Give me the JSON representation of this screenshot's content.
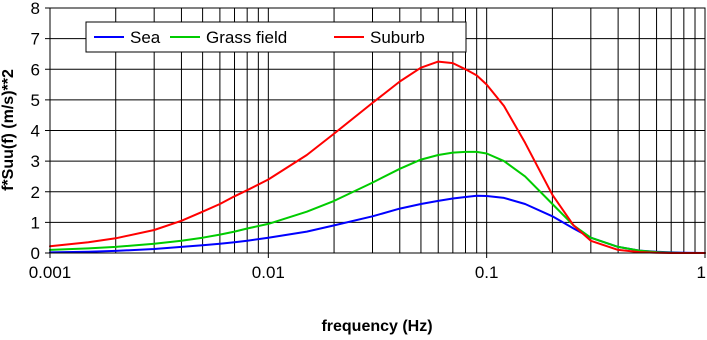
{
  "chart_data": {
    "type": "line",
    "title": "",
    "xlabel": "frequency (Hz)",
    "ylabel": "f*Suu(f)  (m/s)**2",
    "x_scale": "log",
    "xlim": [
      0.001,
      1
    ],
    "ylim": [
      0,
      8
    ],
    "x_ticks": [
      0.001,
      0.01,
      0.1,
      1
    ],
    "x_tick_labels": [
      "0.001",
      "0.01",
      "0.1",
      "1"
    ],
    "y_ticks": [
      0,
      1,
      2,
      3,
      4,
      5,
      6,
      7,
      8
    ],
    "y_tick_labels": [
      "0",
      "1",
      "2",
      "3",
      "4",
      "5",
      "6",
      "7",
      "8"
    ],
    "grid": true,
    "legend_position": "top-left",
    "series": [
      {
        "name": "Sea",
        "color": "#0000ff",
        "x": [
          0.001,
          0.0015,
          0.002,
          0.003,
          0.004,
          0.005,
          0.006,
          0.007,
          0.008,
          0.01,
          0.015,
          0.02,
          0.03,
          0.04,
          0.05,
          0.06,
          0.07,
          0.08,
          0.09,
          0.1,
          0.12,
          0.15,
          0.2,
          0.25,
          0.3,
          0.4,
          0.5,
          0.6,
          0.7,
          0.8,
          1.0
        ],
        "y": [
          0.02,
          0.04,
          0.07,
          0.13,
          0.2,
          0.25,
          0.3,
          0.35,
          0.4,
          0.5,
          0.7,
          0.9,
          1.2,
          1.45,
          1.6,
          1.7,
          1.78,
          1.83,
          1.87,
          1.86,
          1.8,
          1.6,
          1.2,
          0.8,
          0.5,
          0.2,
          0.08,
          0.04,
          0.02,
          0.01,
          0.0
        ]
      },
      {
        "name": "Grass field",
        "color": "#00cc00",
        "x": [
          0.001,
          0.0015,
          0.002,
          0.003,
          0.004,
          0.005,
          0.006,
          0.007,
          0.008,
          0.01,
          0.015,
          0.02,
          0.03,
          0.04,
          0.05,
          0.06,
          0.07,
          0.08,
          0.09,
          0.1,
          0.12,
          0.15,
          0.2,
          0.25,
          0.3,
          0.4,
          0.5,
          0.6,
          0.7,
          0.8,
          1.0
        ],
        "y": [
          0.1,
          0.15,
          0.2,
          0.3,
          0.4,
          0.5,
          0.6,
          0.7,
          0.8,
          0.95,
          1.35,
          1.7,
          2.3,
          2.75,
          3.05,
          3.2,
          3.28,
          3.3,
          3.3,
          3.25,
          3.0,
          2.5,
          1.6,
          0.9,
          0.5,
          0.2,
          0.08,
          0.03,
          0.01,
          0.0,
          0.0
        ]
      },
      {
        "name": "Suburb",
        "color": "#ff0000",
        "x": [
          0.001,
          0.0015,
          0.002,
          0.003,
          0.004,
          0.005,
          0.006,
          0.007,
          0.008,
          0.01,
          0.015,
          0.02,
          0.03,
          0.04,
          0.05,
          0.06,
          0.07,
          0.08,
          0.09,
          0.1,
          0.12,
          0.15,
          0.2,
          0.25,
          0.3,
          0.4,
          0.5,
          0.6,
          0.7,
          0.8,
          1.0
        ],
        "y": [
          0.22,
          0.35,
          0.48,
          0.75,
          1.05,
          1.35,
          1.6,
          1.85,
          2.05,
          2.4,
          3.2,
          3.9,
          4.9,
          5.6,
          6.05,
          6.25,
          6.2,
          6.0,
          5.8,
          5.5,
          4.8,
          3.6,
          1.9,
          0.9,
          0.4,
          0.1,
          0.03,
          0.01,
          0.0,
          0.0,
          0.0
        ]
      }
    ]
  }
}
